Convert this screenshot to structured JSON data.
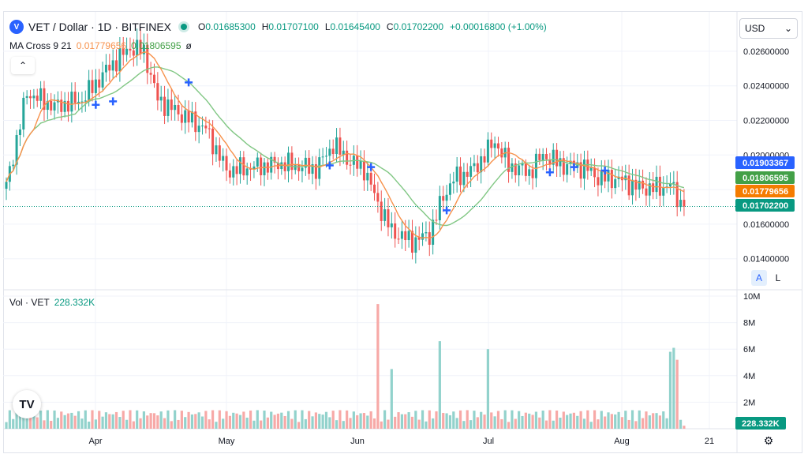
{
  "header": {
    "coin_icon": "vechain-icon",
    "symbol": "VET / Dollar · 1D · BITFINEX",
    "ohlc": [
      {
        "k": "O",
        "v": "0.01685300"
      },
      {
        "k": "H",
        "v": "0.01707100"
      },
      {
        "k": "L",
        "v": "0.01645400"
      },
      {
        "k": "C",
        "v": "0.01702200"
      }
    ],
    "change": "+0.00016800 (+1.00%)"
  },
  "indicator": {
    "name": "MA Cross 9 21",
    "fast_value": "0.01779656",
    "slow_value": "0.01806595",
    "settings": "ø"
  },
  "volume_label": {
    "name": "Vol · VET",
    "value": "228.332K"
  },
  "currency_select": {
    "value": "USD",
    "icon": "chevron-down-icon"
  },
  "scale_buttons": {
    "auto": "A",
    "log": "L"
  },
  "colors": {
    "up": "#26a69a",
    "down": "#ef5350",
    "up_vol": "#92d2cc",
    "down_vol": "#f7a9a7",
    "ma_fast": "#f7924c",
    "ma_slow": "#81c784",
    "cross": "#2962ff",
    "close_line": "#089981"
  },
  "price_axis": {
    "ticks": [
      "0.02600000",
      "0.02400000",
      "0.02200000",
      "0.02000000",
      "0.01600000",
      "0.01400000"
    ]
  },
  "price_badges": [
    {
      "name": "ma-slow-badge",
      "value": "0.01903367",
      "color": "#2962ff"
    },
    {
      "name": "ma-fast-badge",
      "value": "0.01806595",
      "color": "#43a047"
    },
    {
      "name": "ma-value-badge",
      "value": "0.01779656",
      "color": "#f57c00"
    },
    {
      "name": "last-price-badge",
      "value": "0.01702200",
      "color": "#089981"
    }
  ],
  "volume_axis": {
    "ticks": [
      "10M",
      "8M",
      "6M",
      "4M",
      "2M"
    ]
  },
  "volume_badge": "228.332K",
  "time_axis": {
    "labels": [
      "Apr",
      "May",
      "Jun",
      "Jul",
      "Aug",
      "21"
    ]
  },
  "chart_data": {
    "type": "candlestick",
    "title": "VET / Dollar · 1D · BITFINEX",
    "series": [
      {
        "name": "MA Cross 9 21"
      },
      {
        "name": "Vol · VET"
      }
    ],
    "x_labels": [
      "Apr",
      "May",
      "Jun",
      "Jul",
      "Aug",
      "21"
    ],
    "close_key_points": [
      {
        "day": 0,
        "close": 0.0182
      },
      {
        "day": 6,
        "close": 0.0236
      },
      {
        "day": 14,
        "close": 0.0228
      },
      {
        "day": 22,
        "close": 0.0232
      },
      {
        "day": 30,
        "close": 0.0251
      },
      {
        "day": 36,
        "close": 0.0262
      },
      {
        "day": 40,
        "close": 0.026
      },
      {
        "day": 44,
        "close": 0.0232
      },
      {
        "day": 52,
        "close": 0.0222
      },
      {
        "day": 58,
        "close": 0.0215
      },
      {
        "day": 64,
        "close": 0.0191
      },
      {
        "day": 72,
        "close": 0.0193
      },
      {
        "day": 80,
        "close": 0.0195
      },
      {
        "day": 90,
        "close": 0.0192
      },
      {
        "day": 95,
        "close": 0.0206
      },
      {
        "day": 100,
        "close": 0.0196
      },
      {
        "day": 104,
        "close": 0.0192
      },
      {
        "day": 108,
        "close": 0.0172
      },
      {
        "day": 112,
        "close": 0.0156
      },
      {
        "day": 118,
        "close": 0.015
      },
      {
        "day": 123,
        "close": 0.0154
      },
      {
        "day": 127,
        "close": 0.0176
      },
      {
        "day": 130,
        "close": 0.0186
      },
      {
        "day": 136,
        "close": 0.0192
      },
      {
        "day": 142,
        "close": 0.0208
      },
      {
        "day": 146,
        "close": 0.0194
      },
      {
        "day": 152,
        "close": 0.019
      },
      {
        "day": 156,
        "close": 0.02
      },
      {
        "day": 162,
        "close": 0.0194
      },
      {
        "day": 168,
        "close": 0.0193
      },
      {
        "day": 172,
        "close": 0.0187
      },
      {
        "day": 178,
        "close": 0.0186
      },
      {
        "day": 184,
        "close": 0.0181
      },
      {
        "day": 190,
        "close": 0.0181
      },
      {
        "day": 193,
        "close": 0.0183
      },
      {
        "day": 196,
        "close": 0.0172
      },
      {
        "day": 197,
        "close": 0.01702
      }
    ],
    "volume_spikes_M": [
      {
        "day": 108,
        "volume": 9.4
      },
      {
        "day": 112,
        "volume": 4.5
      },
      {
        "day": 126,
        "volume": 6.6
      },
      {
        "day": 140,
        "volume": 6.0
      },
      {
        "day": 193,
        "volume": 5.8
      },
      {
        "day": 194,
        "volume": 6.1
      },
      {
        "day": 195,
        "volume": 5.2
      },
      {
        "day": 197,
        "volume": 0.228
      }
    ],
    "typical_volume_M": 1.0,
    "cross_markers": [
      {
        "day": 26,
        "price": 0.0229
      },
      {
        "day": 31,
        "price": 0.0231
      },
      {
        "day": 53,
        "price": 0.0242
      },
      {
        "day": 94,
        "price": 0.0194
      },
      {
        "day": 106,
        "price": 0.0193
      },
      {
        "day": 128,
        "price": 0.0168
      },
      {
        "day": 158,
        "price": 0.019
      },
      {
        "day": 165,
        "price": 0.0193
      },
      {
        "day": 174,
        "price": 0.0191
      }
    ],
    "last_close": 0.01702,
    "ylim_price": [
      0.0131,
      0.0268
    ],
    "ylim_volume_M": [
      0,
      10
    ],
    "grid": true
  }
}
